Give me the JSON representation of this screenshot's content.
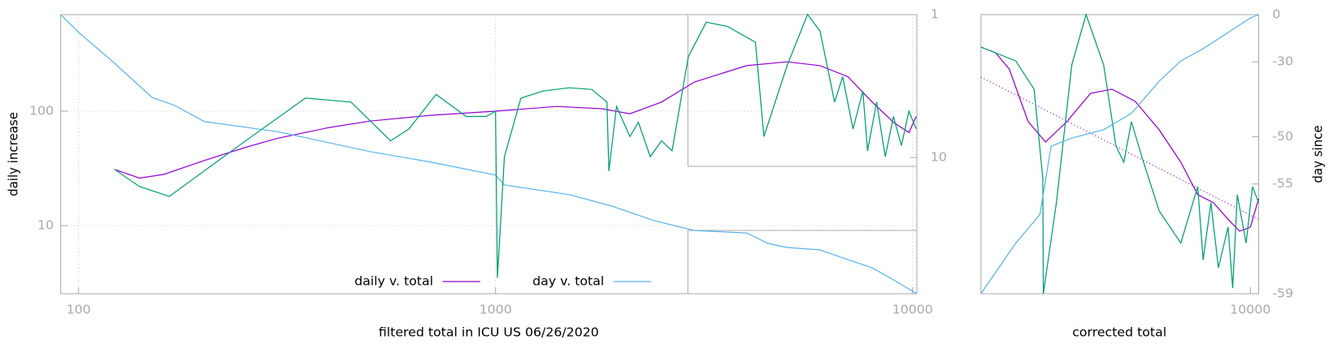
{
  "chart_data": [
    {
      "type": "line",
      "xlabel": "filtered total in ICU US 06/26/2020",
      "ylabel": "daily increase",
      "xscale": "log",
      "yscale": "log",
      "y2scale": "log",
      "xlim": [
        90.6,
        10240
      ],
      "xticks": [
        100,
        1000,
        10000
      ],
      "ylim": [
        2.54,
        698
      ],
      "yticks": [
        10,
        100
      ],
      "y2lim": [
        90,
        1
      ],
      "y2ticks": [
        1,
        10
      ],
      "grid": true,
      "legend": "bottom",
      "series": [
        {
          "name": "daily v. total",
          "color": "#9400d3",
          "x": [
            122,
            140,
            160,
            200,
            250,
            300,
            400,
            500,
            700,
            1000,
            1400,
            1800,
            2100,
            2500,
            3000,
            4000,
            5000,
            6000,
            7000,
            8000,
            9000,
            9800,
            10200
          ],
          "values": [
            31,
            26,
            28,
            37,
            48,
            58,
            72,
            82,
            92,
            100,
            110,
            105,
            95,
            120,
            180,
            250,
            270,
            250,
            200,
            120,
            80,
            65,
            90
          ]
        },
        {
          "name": "day v. total",
          "color": "#56b4e9",
          "axis": "y2",
          "x": [
            90.6,
            100,
            120,
            150,
            170,
            200,
            300,
            500,
            700,
            1000,
            1050,
            1500,
            1900,
            2400,
            3000,
            4000,
            4500,
            5000,
            6000,
            7000,
            8000,
            9000,
            10240
          ],
          "values": [
            1,
            1.33,
            2.1,
            3.8,
            4.33,
            5.6,
            6.6,
            9.1,
            10.8,
            13.3,
            15.6,
            18.2,
            21.9,
            27.7,
            32.5,
            33.8,
            40,
            42.7,
            44.4,
            52,
            59.3,
            72,
            90
          ]
        },
        {
          "color": "#009e73",
          "x": [
            122,
            140,
            165,
            200,
            260,
            350,
            450,
            560,
            620,
            720,
            850,
            950,
            1000,
            1010,
            1050,
            1150,
            1300,
            1500,
            1700,
            1850,
            1870,
            1950,
            2100,
            2200,
            2350,
            2500,
            2650,
            2900,
            3200,
            3600,
            4200,
            4400,
            5000,
            5600,
            6000,
            6500,
            6800,
            7200,
            7600,
            7800,
            8200,
            8600,
            9000,
            9400,
            9800,
            10200
          ],
          "values": [
            31,
            22,
            18,
            30,
            60,
            130,
            120,
            55,
            70,
            140,
            90,
            90,
            100,
            3.5,
            40,
            130,
            150,
            160,
            155,
            120,
            30,
            110,
            60,
            80,
            40,
            55,
            45,
            300,
            600,
            550,
            400,
            60,
            250,
            700,
            500,
            120,
            200,
            70,
            150,
            45,
            120,
            40,
            90,
            50,
            100,
            70
          ]
        }
      ]
    },
    {
      "type": "line",
      "xlabel": "corrected total",
      "y2label": "day since",
      "xscale": "log",
      "yscale": "log",
      "y2scale": "log",
      "y2offset": 60,
      "xlim": [
        2800,
        10400
      ],
      "xticks": [
        10000
      ],
      "ylim": [
        1,
        1000
      ],
      "y2lim": [
        -59,
        0
      ],
      "y2ticks": [
        0,
        -30,
        -50,
        -55,
        -59
      ],
      "series": [
        {
          "color": "#9400d3",
          "x": [
            2800,
            3000,
            3200,
            3500,
            3800,
            4200,
            4700,
            5200,
            5800,
            6500,
            7200,
            7800,
            8400,
            9000,
            9500,
            10000,
            10400
          ],
          "values": [
            448,
            389,
            260,
            70.6,
            42.7,
            70.6,
            142.6,
            158,
            117,
            57.8,
            25.9,
            11.6,
            9.5,
            6.3,
            4.7,
            5.2,
            10.5
          ]
        },
        {
          "color": "#9400d3",
          "dash": "dotted",
          "x": [
            2800,
            10400
          ],
          "values": [
            213,
            6.3
          ]
        },
        {
          "color": "#009e73",
          "x": [
            2800,
            3300,
            3600,
            3750,
            3760,
            4000,
            4300,
            4600,
            5000,
            5300,
            5500,
            5700,
            6000,
            6500,
            7200,
            7800,
            8000,
            8300,
            8600,
            9000,
            9200,
            9400,
            9800,
            10100,
            10400
          ],
          "values": [
            448,
            318,
            158,
            17.3,
            1,
            9.5,
            288,
            1000,
            288,
            38.6,
            25.9,
            70.6,
            28.6,
            7.75,
            3.5,
            14.2,
            2.3,
            9.5,
            1.9,
            5.2,
            1.15,
            11.6,
            3.5,
            14.2,
            9.5
          ]
        },
        {
          "color": "#56b4e9",
          "axis": "y2",
          "x": [
            2800,
            3300,
            3700,
            3900,
            4300,
            5000,
            5700,
            6500,
            7200,
            8000,
            9000,
            10000,
            10400
          ],
          "values": [
            -59,
            -57.9,
            -56.8,
            -51.3,
            -50.2,
            -48.9,
            -45.9,
            -37.4,
            -29.6,
            -23.6,
            -13.9,
            -2.9,
            0
          ]
        }
      ]
    }
  ]
}
